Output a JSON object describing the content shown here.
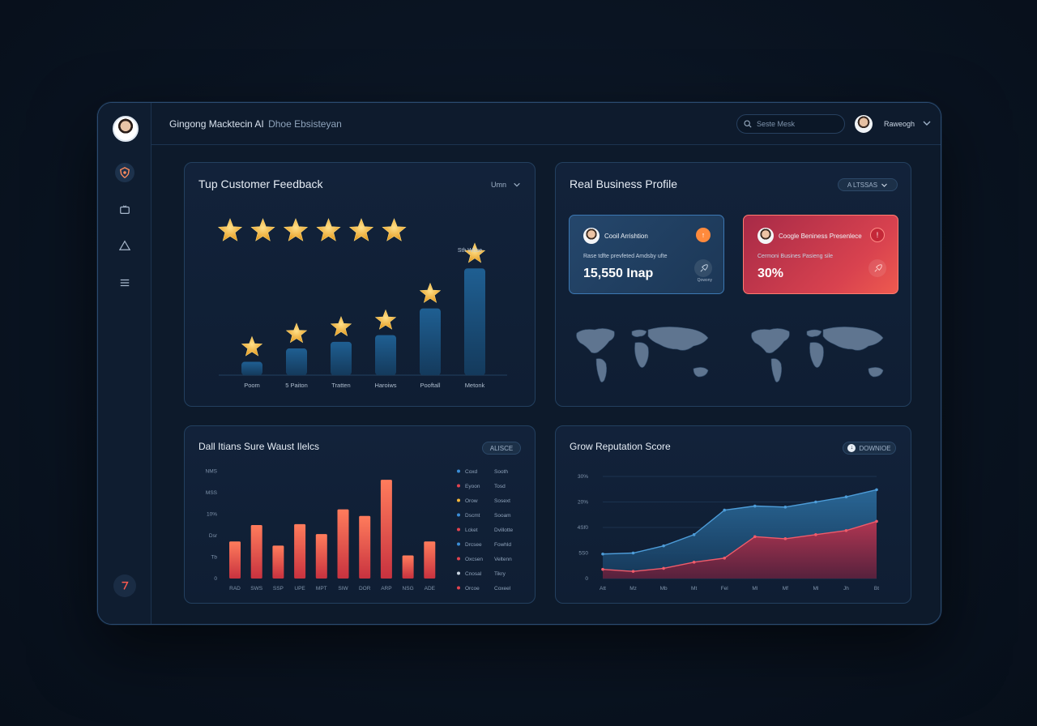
{
  "app": {
    "title": "Gingong Macktecin AI",
    "subtitle": "Dhoe Ebsisteyan"
  },
  "search": {
    "placeholder": "Seste Mesk"
  },
  "user": {
    "name": "Raweogh"
  },
  "sidebar": {
    "items": [
      "shield-icon",
      "monitor-icon",
      "alert-icon",
      "menu-icon"
    ],
    "bottom": "logout-icon"
  },
  "colors": {
    "accent_orange": "#ff8a3c",
    "accent_red": "#e2434f",
    "bar_blue": "#1d5a8a",
    "star_gold": "#f5b73b"
  },
  "feedback": {
    "title": "Tup Customer Feedback",
    "dropdown": "Umn",
    "stars_count": 6,
    "top_label": "Sth Wttse"
  },
  "profile": {
    "title": "Real Business Profile",
    "dropdown": "A LTSSAS",
    "card1": {
      "name": "Cooil Arrishtion",
      "desc": "Rase tdfte prevfeted Amdsby ufte",
      "value": "15,550 Inap",
      "corner_label": "Qowony"
    },
    "card2": {
      "name": "Coogle Beniness Presenlece",
      "desc": "Cermoni Busines Pasieng sile",
      "value": "30%"
    }
  },
  "sales": {
    "title": "Dall Itians Sure Waust Ilelcs",
    "pill": "ALISCE"
  },
  "reputation": {
    "title": "Grow Reputation Score",
    "pill": "DOWNIOE"
  },
  "chart_data": [
    {
      "type": "bar",
      "title": "Tup Customer Feedback",
      "categories": [
        "Poom",
        "5 Paiton",
        "Tratten",
        "Haroiws",
        "Pooftall",
        "Metonk"
      ],
      "values": [
        1,
        2,
        2.5,
        3,
        5,
        8
      ],
      "ylim": [
        0,
        8.5
      ],
      "grid": false
    },
    {
      "type": "bar",
      "title": "Dall Itians Sure Waust Ilelcs",
      "categories": [
        "RAD",
        "SWS",
        "SSP",
        "UPE",
        "MPT",
        "SIW",
        "DOR",
        "ARP",
        "NSG",
        "ADE"
      ],
      "values": [
        45,
        65,
        40,
        66,
        54,
        84,
        76,
        120,
        28,
        45
      ],
      "yticks": [
        "0",
        "Tb",
        "Dsr",
        "10%",
        "MSS",
        "NMS"
      ],
      "legend": [
        {
          "label": "Coxd",
          "value": "Sooth",
          "color": "#3b8dd6"
        },
        {
          "label": "Eyoon",
          "value": "Tosd",
          "color": "#e2434f"
        },
        {
          "label": "Orow",
          "value": "Sosext",
          "color": "#f5b73b"
        },
        {
          "label": "Dscmt",
          "value": "Sooam",
          "color": "#3b8dd6"
        },
        {
          "label": "Lcket",
          "value": "Dvillotte",
          "color": "#e2434f"
        },
        {
          "label": "Drcsee",
          "value": "Fowhld",
          "color": "#3b8dd6"
        },
        {
          "label": "Oxcsen",
          "value": "Veltenn",
          "color": "#e2434f"
        },
        {
          "label": "Cnosal",
          "value": "Tikry",
          "color": "#c8d4e0"
        },
        {
          "label": "Orcoe",
          "value": "Coxeel",
          "color": "#e2434f"
        }
      ],
      "legend_placement": "right",
      "grid": false
    },
    {
      "type": "area",
      "title": "Grow Reputation Score",
      "x": [
        "Att",
        "Mz",
        "Mb",
        "Mt",
        "Fel",
        "Ml",
        "Mf",
        "Ml",
        "Jh",
        "Bt"
      ],
      "yticks": [
        "0",
        "5S0",
        "4Sf0",
        "20%",
        "30%"
      ],
      "ylim": [
        0,
        100
      ],
      "series": [
        {
          "values": [
            24,
            25,
            32,
            43,
            67,
            71,
            70,
            75,
            80,
            87
          ],
          "color": "#2a6d9f"
        },
        {
          "values": [
            9,
            7,
            10,
            16,
            20,
            41,
            39,
            43,
            47,
            56
          ],
          "color": "#c43a55"
        }
      ],
      "grid": true
    }
  ]
}
